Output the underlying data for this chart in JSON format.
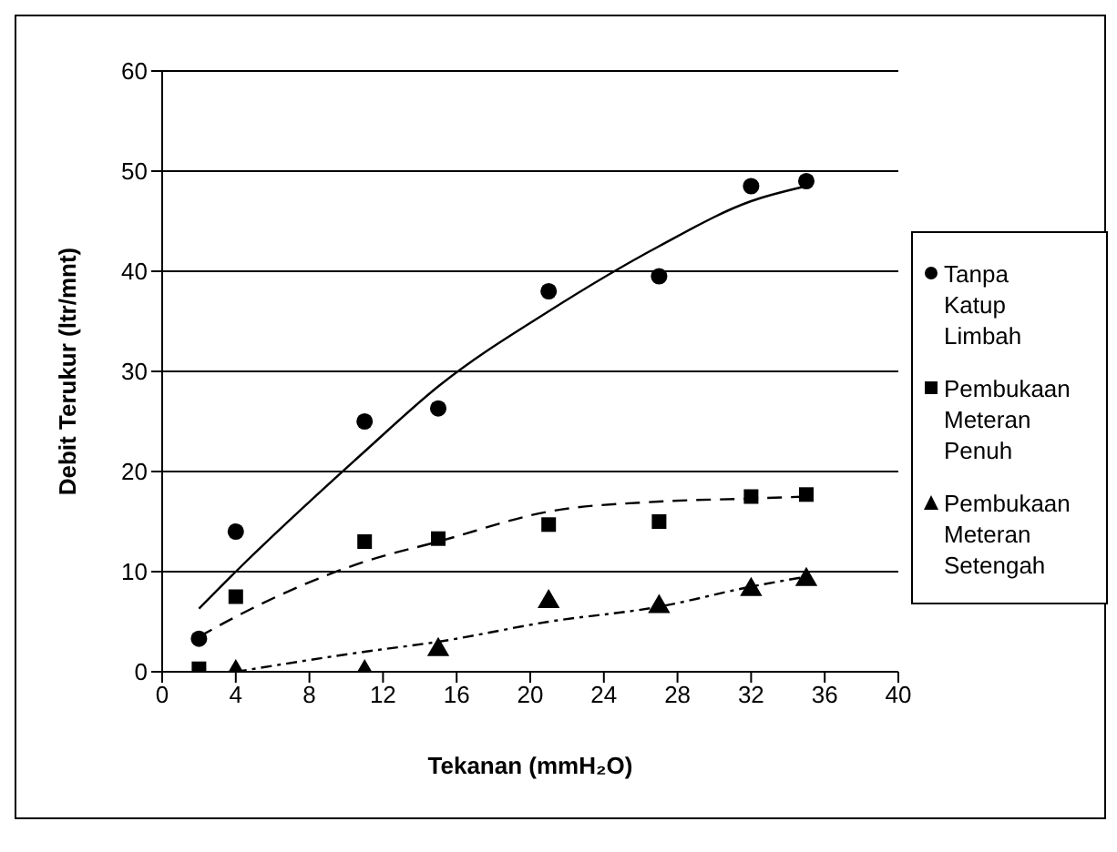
{
  "chart_data": {
    "type": "scatter",
    "xlabel": "Tekanan (mmH₂O)",
    "ylabel": "Debit Terukur (ltr/mnt)",
    "x": [
      2,
      4,
      11,
      15,
      21,
      27,
      32,
      35
    ],
    "xlim": [
      0,
      40
    ],
    "xticks": [
      0,
      4,
      8,
      12,
      16,
      20,
      24,
      28,
      32,
      36,
      40
    ],
    "ylim": [
      0,
      60
    ],
    "yticks": [
      0,
      10,
      20,
      30,
      40,
      50,
      60
    ],
    "grid": "y",
    "legend": "right",
    "series": [
      {
        "name": "Tanpa Katup Limbah",
        "color": "#000000",
        "marker": "circle",
        "values": [
          3.3,
          14,
          25,
          26.3,
          38,
          39.5,
          48.5,
          49
        ]
      },
      {
        "name": "Pembukaan Meteran Penuh",
        "color": "#000000",
        "marker": "square",
        "values": [
          0.3,
          7.5,
          13,
          13.3,
          14.7,
          15,
          17.5,
          17.7
        ]
      },
      {
        "name": "Pembukaan Meteran Setengah",
        "color": "#000000",
        "marker": "triangle",
        "values": [
          null,
          0,
          0,
          2.2,
          7,
          6.5,
          8.2,
          9.2
        ]
      },
      {
        "type": "line",
        "color": "#000000",
        "line_style": "solid",
        "x": [
          2,
          4,
          11,
          15,
          21,
          27,
          32,
          35
        ],
        "values": [
          6.3,
          10,
          22,
          28.5,
          36,
          42.5,
          47,
          48.5
        ]
      },
      {
        "type": "line",
        "color": "#000000",
        "line_style": "dashed",
        "x": [
          2,
          4,
          11,
          15,
          21,
          27,
          32,
          35
        ],
        "values": [
          3.5,
          5.5,
          11,
          13,
          16,
          17,
          17.3,
          17.5
        ]
      },
      {
        "type": "line",
        "color": "#000000",
        "line_style": "dotted",
        "x": [
          4,
          11,
          15,
          21,
          27,
          32,
          35
        ],
        "values": [
          0,
          2,
          3,
          5,
          6.5,
          8.5,
          9.5
        ]
      }
    ]
  }
}
